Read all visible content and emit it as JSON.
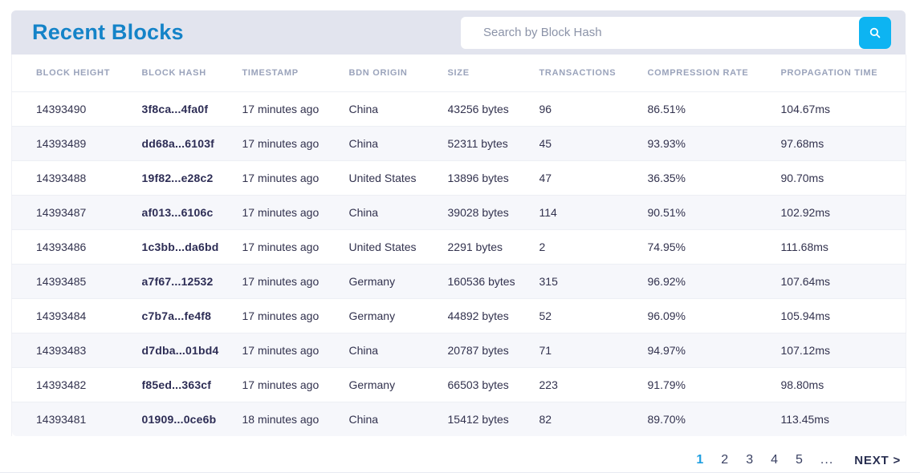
{
  "header": {
    "title": "Recent Blocks"
  },
  "search": {
    "placeholder": "Search by Block Hash"
  },
  "table": {
    "columns": [
      "BLOCK HEIGHT",
      "BLOCK HASH",
      "TIMESTAMP",
      "BDN ORIGIN",
      "SIZE",
      "TRANSACTIONS",
      "COMPRESSION RATE",
      "PROPAGATION TIME"
    ],
    "rows": [
      {
        "block_height": "14393490",
        "block_hash": "3f8ca...4fa0f",
        "timestamp": "17 minutes ago",
        "bdn_origin": "China",
        "size": "43256 bytes",
        "transactions": "96",
        "compression_rate": "86.51%",
        "propagation_time": "104.67ms"
      },
      {
        "block_height": "14393489",
        "block_hash": "dd68a...6103f",
        "timestamp": "17 minutes ago",
        "bdn_origin": "China",
        "size": "52311 bytes",
        "transactions": "45",
        "compression_rate": "93.93%",
        "propagation_time": "97.68ms"
      },
      {
        "block_height": "14393488",
        "block_hash": "19f82...e28c2",
        "timestamp": "17 minutes ago",
        "bdn_origin": "United States",
        "size": "13896 bytes",
        "transactions": "47",
        "compression_rate": "36.35%",
        "propagation_time": "90.70ms"
      },
      {
        "block_height": "14393487",
        "block_hash": "af013...6106c",
        "timestamp": "17 minutes ago",
        "bdn_origin": "China",
        "size": "39028 bytes",
        "transactions": "114",
        "compression_rate": "90.51%",
        "propagation_time": "102.92ms"
      },
      {
        "block_height": "14393486",
        "block_hash": "1c3bb...da6bd",
        "timestamp": "17 minutes ago",
        "bdn_origin": "United States",
        "size": "2291 bytes",
        "transactions": "2",
        "compression_rate": "74.95%",
        "propagation_time": "111.68ms"
      },
      {
        "block_height": "14393485",
        "block_hash": "a7f67...12532",
        "timestamp": "17 minutes ago",
        "bdn_origin": "Germany",
        "size": "160536 bytes",
        "transactions": "315",
        "compression_rate": "96.92%",
        "propagation_time": "107.64ms"
      },
      {
        "block_height": "14393484",
        "block_hash": "c7b7a...fe4f8",
        "timestamp": "17 minutes ago",
        "bdn_origin": "Germany",
        "size": "44892 bytes",
        "transactions": "52",
        "compression_rate": "96.09%",
        "propagation_time": "105.94ms"
      },
      {
        "block_height": "14393483",
        "block_hash": "d7dba...01bd4",
        "timestamp": "17 minutes ago",
        "bdn_origin": "China",
        "size": "20787 bytes",
        "transactions": "71",
        "compression_rate": "94.97%",
        "propagation_time": "107.12ms"
      },
      {
        "block_height": "14393482",
        "block_hash": "f85ed...363cf",
        "timestamp": "17 minutes ago",
        "bdn_origin": "Germany",
        "size": "66503 bytes",
        "transactions": "223",
        "compression_rate": "91.79%",
        "propagation_time": "98.80ms"
      },
      {
        "block_height": "14393481",
        "block_hash": "01909...0ce6b",
        "timestamp": "18 minutes ago",
        "bdn_origin": "China",
        "size": "15412 bytes",
        "transactions": "82",
        "compression_rate": "89.70%",
        "propagation_time": "113.45ms"
      }
    ]
  },
  "pagination": {
    "pages": [
      "1",
      "2",
      "3",
      "4",
      "5"
    ],
    "current": "1",
    "ellipsis": "...",
    "next_label": "NEXT >"
  },
  "colors": {
    "title_blue": "#1483c8",
    "search_button_blue": "#0db4f2",
    "band_background": "#e2e4ee",
    "header_label_gray": "#9aa3bb",
    "row_alt_background": "#f6f7fb",
    "pagination_active_blue": "#1f9fe0"
  }
}
